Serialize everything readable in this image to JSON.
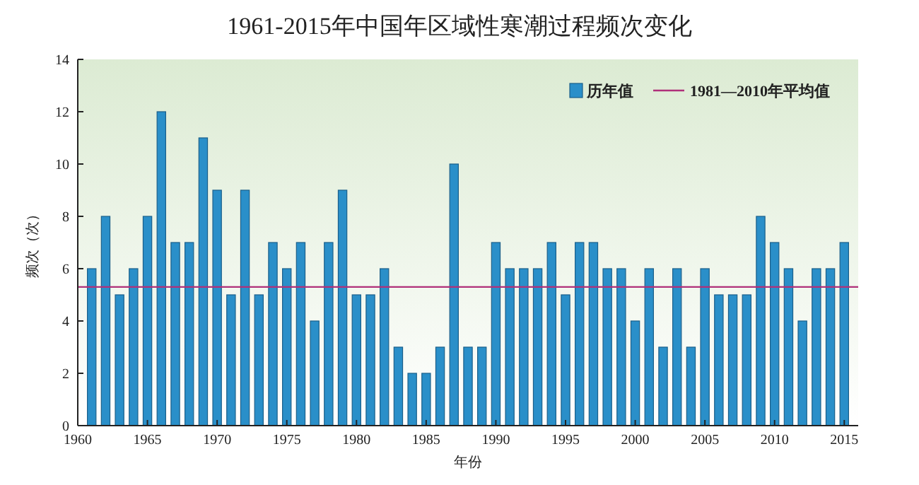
{
  "chart_data": {
    "type": "bar",
    "title": "1961-2015年中国年区域性寒潮过程频次变化",
    "xlabel": "年份",
    "ylabel": "频次（次）",
    "x": [
      1961,
      1962,
      1963,
      1964,
      1965,
      1966,
      1967,
      1968,
      1969,
      1970,
      1971,
      1972,
      1973,
      1974,
      1975,
      1976,
      1977,
      1978,
      1979,
      1980,
      1981,
      1982,
      1983,
      1984,
      1985,
      1986,
      1987,
      1988,
      1989,
      1990,
      1991,
      1992,
      1993,
      1994,
      1995,
      1996,
      1997,
      1998,
      1999,
      2000,
      2001,
      2002,
      2003,
      2004,
      2005,
      2006,
      2007,
      2008,
      2009,
      2010,
      2011,
      2012,
      2013,
      2014,
      2015
    ],
    "series": [
      {
        "name": "历年值",
        "color": "#2a8fc9",
        "values": [
          6,
          8,
          5,
          6,
          8,
          12,
          7,
          7,
          11,
          9,
          5,
          9,
          5,
          7,
          6,
          7,
          4,
          7,
          9,
          5,
          5,
          6,
          3,
          2,
          2,
          3,
          10,
          3,
          3,
          7,
          6,
          6,
          6,
          7,
          5,
          7,
          7,
          6,
          6,
          4,
          6,
          3,
          6,
          3,
          6,
          5,
          5,
          5,
          8,
          7,
          6,
          4,
          6,
          6,
          7
        ]
      }
    ],
    "ref_lines": [
      {
        "axis": "y",
        "value": 5.3,
        "label": "1981—2010年平均值",
        "color": "#b0307a",
        "line_style": "solid"
      }
    ],
    "xlim": [
      1960,
      2016
    ],
    "xticks": [
      1960,
      1965,
      1970,
      1975,
      1980,
      1985,
      1990,
      1995,
      2000,
      2005,
      2010,
      2015
    ],
    "ylim": [
      0,
      14
    ],
    "yticks": [
      0,
      2,
      4,
      6,
      8,
      10,
      12,
      14
    ],
    "grid": false,
    "legend": "top right"
  }
}
